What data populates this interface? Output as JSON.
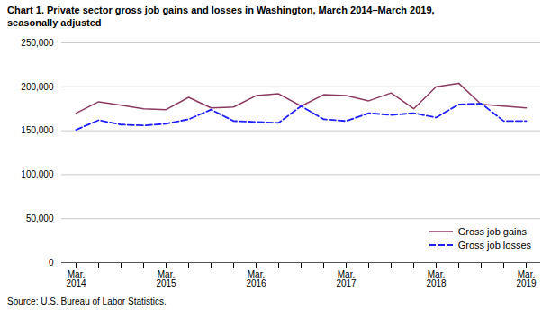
{
  "chart_data": {
    "type": "line",
    "title": "Chart 1. Private sector gross job gains and losses  in Washington, March 2014–March 2019,\nseasonally adjusted",
    "source": "Source: U.S. Bureau of Labor Statistics.",
    "categories": [
      "Mar.\n2014",
      null,
      null,
      null,
      "Mar.\n2015",
      null,
      null,
      null,
      "Mar.\n2016",
      null,
      null,
      null,
      "Mar.\n2017",
      null,
      null,
      null,
      "Mar.\n2018",
      null,
      null,
      null,
      "Mar.\n2019"
    ],
    "series": [
      {
        "name": "Gross job gains",
        "color": "#8B3A62",
        "line_style": "solid",
        "values": [
          170000,
          183000,
          179000,
          175000,
          174000,
          188000,
          176000,
          177000,
          190000,
          192000,
          178000,
          191000,
          190000,
          184000,
          193000,
          175000,
          200000,
          204000,
          180000,
          178000,
          176000
        ]
      },
      {
        "name": "Gross job losses",
        "color": "#1F1FFF",
        "line_style": "dashed",
        "values": [
          151000,
          162000,
          157000,
          156000,
          158000,
          163000,
          174000,
          161000,
          160000,
          159000,
          178000,
          163000,
          161000,
          170000,
          168000,
          170000,
          165000,
          180000,
          181000,
          161000,
          161000
        ]
      }
    ],
    "ylim": [
      0,
      250000
    ],
    "yticks": [
      0,
      {
        "value": 50000,
        "label": "50,000"
      },
      {
        "value": 100000,
        "label": "100,000"
      },
      {
        "value": 150000,
        "label": "150,000"
      },
      {
        "value": 200000,
        "label": "200,000"
      },
      {
        "value": 250000,
        "label": "250,000"
      }
    ],
    "grid": true,
    "legend": "lower right"
  }
}
